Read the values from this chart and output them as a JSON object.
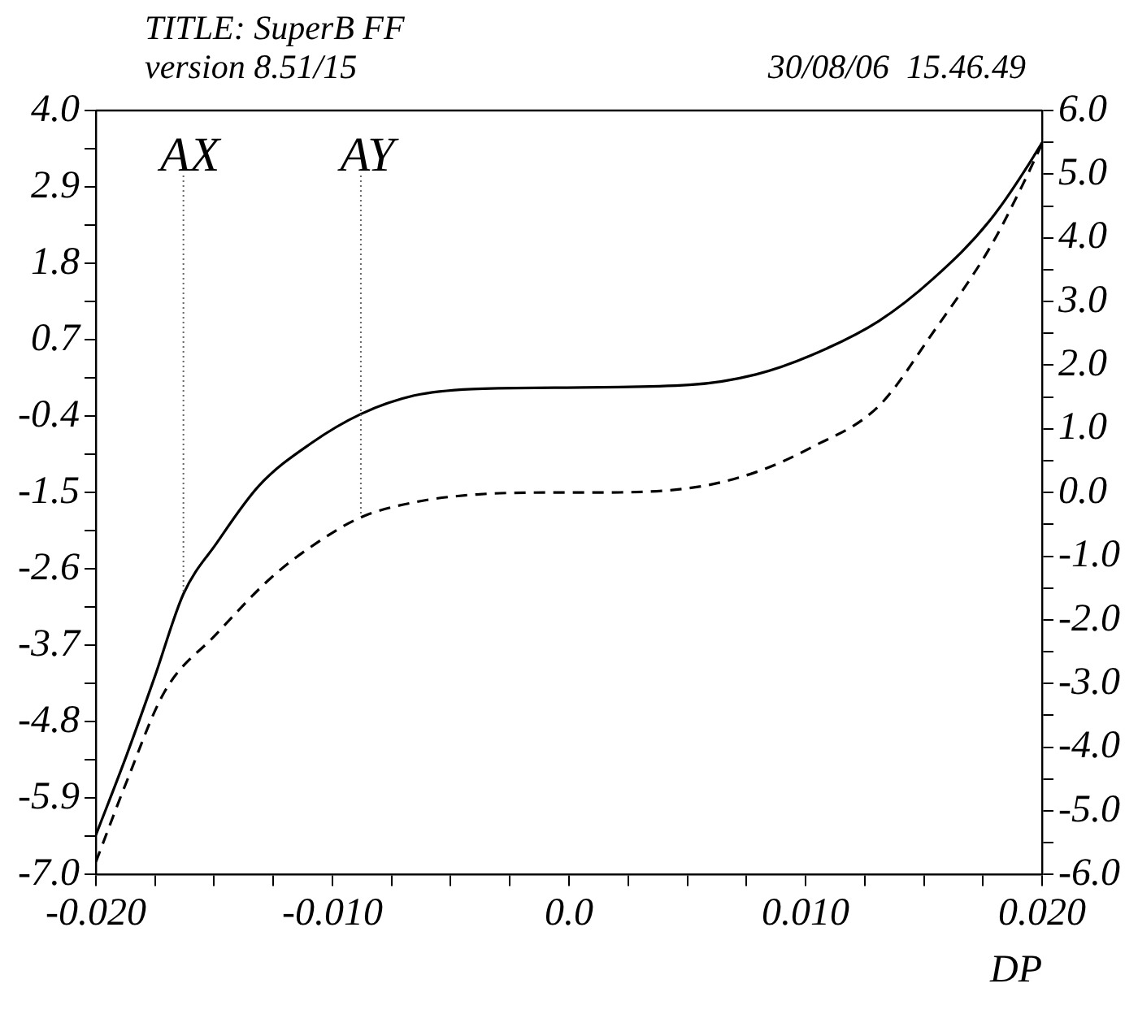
{
  "chart_data": {
    "type": "line",
    "title": "TITLE: SuperB FF",
    "subtitle": "version 8.51/15",
    "xlabel": "DP",
    "annotations": [
      {
        "text": "AX",
        "x": -0.0163,
        "y": -2.96
      },
      {
        "text": "AY",
        "x": -0.0088,
        "y": -1.85
      },
      "30/08/06  15.46.49"
    ],
    "xlim": [
      -0.02,
      0.02
    ],
    "xticks": [
      {
        "value": -0.02,
        "label": "-0.020"
      },
      {
        "value": -0.0175,
        "label": null
      },
      {
        "value": -0.015,
        "label": null
      },
      {
        "value": -0.0125,
        "label": null
      },
      {
        "value": -0.01,
        "label": "-0.010"
      },
      {
        "value": -0.0075,
        "label": null
      },
      {
        "value": -0.005,
        "label": null
      },
      {
        "value": -0.0025,
        "label": null
      },
      {
        "value": 0,
        "label": "0.0"
      },
      {
        "value": 0.0025,
        "label": null
      },
      {
        "value": 0.005,
        "label": null
      },
      {
        "value": 0.0075,
        "label": null
      },
      {
        "value": 0.01,
        "label": "0.010"
      },
      {
        "value": 0.0125,
        "label": null
      },
      {
        "value": 0.015,
        "label": null
      },
      {
        "value": 0.0175,
        "label": null
      },
      {
        "value": 0.02,
        "label": "0.020"
      }
    ],
    "ylim": [
      -7,
      4
    ],
    "yticks": [
      {
        "value": -7,
        "label": "-7.0"
      },
      {
        "value": -6.45,
        "label": null
      },
      {
        "value": -5.9,
        "label": "-5.9"
      },
      {
        "value": -5.35,
        "label": null
      },
      {
        "value": -4.8,
        "label": "-4.8"
      },
      {
        "value": -4.25,
        "label": null
      },
      {
        "value": -3.7,
        "label": "-3.7"
      },
      {
        "value": -3.15,
        "label": null
      },
      {
        "value": -2.6,
        "label": "-2.6"
      },
      {
        "value": -2.05,
        "label": null
      },
      {
        "value": -1.5,
        "label": "-1.5"
      },
      {
        "value": -0.95,
        "label": null
      },
      {
        "value": -0.4,
        "label": "-0.4"
      },
      {
        "value": 0.15,
        "label": null
      },
      {
        "value": 0.7,
        "label": "0.7"
      },
      {
        "value": 1.25,
        "label": null
      },
      {
        "value": 1.8,
        "label": "1.8"
      },
      {
        "value": 2.35,
        "label": null
      },
      {
        "value": 2.9,
        "label": "2.9"
      },
      {
        "value": 3.45,
        "label": null
      },
      {
        "value": 4,
        "label": "4.0"
      }
    ],
    "y2lim": [
      -6,
      6
    ],
    "y2ticks": [
      {
        "value": -6,
        "label": "-6.0"
      },
      {
        "value": -5.5,
        "label": null
      },
      {
        "value": -5,
        "label": "-5.0"
      },
      {
        "value": -4.5,
        "label": null
      },
      {
        "value": -4,
        "label": "-4.0"
      },
      {
        "value": -3.5,
        "label": null
      },
      {
        "value": -3,
        "label": "-3.0"
      },
      {
        "value": -2.5,
        "label": null
      },
      {
        "value": -2,
        "label": "-2.0"
      },
      {
        "value": -1.5,
        "label": null
      },
      {
        "value": -1,
        "label": "-1.0"
      },
      {
        "value": -0.5,
        "label": null
      },
      {
        "value": 0,
        "label": "0.0"
      },
      {
        "value": 0.5,
        "label": null
      },
      {
        "value": 1,
        "label": "1.0"
      },
      {
        "value": 1.5,
        "label": null
      },
      {
        "value": 2,
        "label": "2.0"
      },
      {
        "value": 2.5,
        "label": null
      },
      {
        "value": 3,
        "label": "3.0"
      },
      {
        "value": 3.5,
        "label": null
      },
      {
        "value": 4,
        "label": "4.0"
      },
      {
        "value": 4.5,
        "label": null
      },
      {
        "value": 5,
        "label": "5.0"
      },
      {
        "value": 5.5,
        "label": null
      },
      {
        "value": 6,
        "label": "6.0"
      }
    ],
    "marker": "none",
    "series": [
      {
        "color": "#000000",
        "line_style": "solid",
        "axis": "y",
        "x": [
          -0.02,
          -0.0187,
          -0.0175,
          -0.0163,
          -0.0149,
          -0.0131,
          -0.0109,
          -0.0088,
          -0.0065,
          -0.0041,
          -0.0006,
          0.0051,
          0.0079,
          0.0102,
          0.0131,
          0.0154,
          0.0178,
          0.0199,
          0.02
        ],
        "values": [
          -6.43,
          -5.28,
          -4.14,
          -2.96,
          -2.23,
          -1.4,
          -0.79,
          -0.37,
          -0.1,
          -0.01,
          0.01,
          0.05,
          0.2,
          0.47,
          0.97,
          1.58,
          2.42,
          3.48,
          3.54
        ]
      },
      {
        "color": "#000000",
        "line_style": "dashed",
        "axis": "y2",
        "x": [
          -0.02,
          -0.0187,
          -0.0171,
          -0.0149,
          -0.0126,
          -0.0107,
          -0.0088,
          -0.0065,
          -0.0039,
          -0.0006,
          0.0008,
          0.0051,
          0.0079,
          0.0102,
          0.0131,
          0.0154,
          0.0178,
          0.0192,
          0.02
        ],
        "values": [
          -5.8,
          -4.54,
          -3.13,
          -2.22,
          -1.34,
          -0.8,
          -0.39,
          -0.15,
          -0.03,
          0,
          0,
          0.07,
          0.32,
          0.7,
          1.36,
          2.52,
          3.85,
          4.85,
          5.48
        ]
      }
    ]
  }
}
